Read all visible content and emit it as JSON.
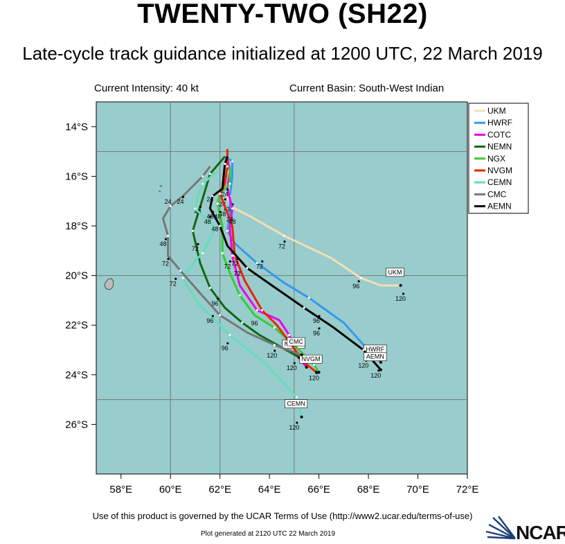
{
  "title": "TWENTY-TWO (SH22)",
  "subtitle": "Late-cycle track guidance initialized at 1200 UTC, 22 March 2019",
  "intensity": "Current Intensity: 40 kt",
  "basin": "Current Basin: South-West Indian",
  "footer": "Use of this product is governed by the UCAR Terms of Use (http://www2.ucar.edu/terms-of-use)",
  "generated": "Plot generated at 2120 UTC   22 March 2019",
  "logo_text": "NCAR",
  "colors": {
    "ocean": "#99cccc",
    "land": "#bbbbbb",
    "grid": "#777777"
  },
  "chart_data": {
    "type": "map-tracks",
    "lon_range": [
      57,
      72
    ],
    "lat_range": [
      -28,
      -13
    ],
    "x_ticks": [
      {
        "v": 58,
        "label": "58°E"
      },
      {
        "v": 60,
        "label": "60°E"
      },
      {
        "v": 62,
        "label": "62°E"
      },
      {
        "v": 64,
        "label": "64°E"
      },
      {
        "v": 66,
        "label": "66°E"
      },
      {
        "v": 68,
        "label": "68°E"
      },
      {
        "v": 70,
        "label": "70°E"
      },
      {
        "v": 72,
        "label": "72°E"
      }
    ],
    "y_ticks": [
      {
        "v": -14,
        "label": "14°S"
      },
      {
        "v": -16,
        "label": "16°S"
      },
      {
        "v": -18,
        "label": "18°S"
      },
      {
        "v": -20,
        "label": "20°S"
      },
      {
        "v": -22,
        "label": "22°S"
      },
      {
        "v": -24,
        "label": "24°S"
      },
      {
        "v": -26,
        "label": "26°S"
      }
    ],
    "gridlines_lon": [
      60,
      62,
      65
    ],
    "gridlines_lat": [
      -15,
      -20,
      -25
    ],
    "series": [
      {
        "name": "UKM",
        "color": "#f5deb3",
        "end_label": "UKM",
        "points": [
          [
            62.3,
            -15.5
          ],
          [
            62.4,
            -16.2
          ],
          [
            62.3,
            -16.8
          ],
          [
            62.4,
            -17.2
          ],
          [
            63.2,
            -17.6
          ],
          [
            64.6,
            -18.4
          ],
          [
            66.5,
            -19.3
          ],
          [
            67.7,
            -20.1
          ],
          [
            68.5,
            -20.4
          ],
          [
            69.3,
            -20.4
          ]
        ],
        "labels": [
          {
            "lon": 62.1,
            "lat": -17.1,
            "t": "24"
          },
          {
            "lon": 62.1,
            "lat": -17.5,
            "t": "48"
          },
          {
            "lon": 64.5,
            "lat": -18.8,
            "t": "72"
          },
          {
            "lon": 67.5,
            "lat": -20.4,
            "t": "96"
          },
          {
            "lon": 69.3,
            "lat": -20.9,
            "t": "120"
          }
        ]
      },
      {
        "name": "HWRF",
        "color": "#3399ee",
        "end_label": "HWRF",
        "points": [
          [
            62.2,
            -15.2
          ],
          [
            62.5,
            -15.4
          ],
          [
            62.5,
            -16.0
          ],
          [
            62.4,
            -16.8
          ],
          [
            62.4,
            -17.5
          ],
          [
            62.3,
            -18.2
          ],
          [
            62.6,
            -18.7
          ],
          [
            63.5,
            -19.5
          ],
          [
            64.6,
            -20.3
          ],
          [
            65.6,
            -20.9
          ],
          [
            67.0,
            -21.9
          ],
          [
            67.9,
            -22.9
          ],
          [
            68.5,
            -23.5
          ]
        ],
        "labels": [
          {
            "lon": 62.4,
            "lat": -17.3,
            "t": "24"
          },
          {
            "lon": 63.6,
            "lat": -19.6,
            "t": "72"
          },
          {
            "lon": 65.9,
            "lat": -21.8,
            "t": "96"
          },
          {
            "lon": 67.8,
            "lat": -23.6,
            "t": "120"
          }
        ]
      },
      {
        "name": "COTC",
        "color": "#ee00ee",
        "points": [
          [
            62.3,
            -15.3
          ],
          [
            62.4,
            -15.8
          ],
          [
            62.3,
            -16.5
          ],
          [
            62.5,
            -17.3
          ],
          [
            62.4,
            -18.1
          ],
          [
            62.5,
            -19.2
          ],
          [
            62.8,
            -20.4
          ],
          [
            63.5,
            -21.4
          ],
          [
            64.4,
            -21.8
          ],
          [
            64.8,
            -22.4
          ],
          [
            65.1,
            -23.2
          ],
          [
            65.5,
            -23.7
          ]
        ],
        "labels": [
          {
            "lon": 62.7,
            "lat": -19.9,
            "t": "72"
          }
        ]
      },
      {
        "name": "NEMN",
        "color": "#116611",
        "end_label": "NEMN",
        "points": [
          [
            62.2,
            -15.2
          ],
          [
            61.6,
            -15.9
          ],
          [
            61.3,
            -16.9
          ],
          [
            60.9,
            -18.2
          ],
          [
            61.2,
            -19.5
          ],
          [
            61.6,
            -20.5
          ],
          [
            62.2,
            -21.3
          ],
          [
            62.9,
            -21.9
          ],
          [
            63.6,
            -22.4
          ],
          [
            64.5,
            -22.9
          ],
          [
            65.2,
            -23.3
          ]
        ],
        "labels": [
          {
            "lon": 61.1,
            "lat": -17.4,
            "t": "48"
          },
          {
            "lon": 61.0,
            "lat": -18.9,
            "t": "72"
          },
          {
            "lon": 61.8,
            "lat": -21.1,
            "t": "96"
          },
          {
            "lon": 64.1,
            "lat": -23.2,
            "t": "120"
          }
        ]
      },
      {
        "name": "NGX",
        "color": "#33cc33",
        "points": [
          [
            62.4,
            -15.6
          ],
          [
            62.4,
            -16.3
          ],
          [
            62.0,
            -16.7
          ],
          [
            61.9,
            -17.1
          ],
          [
            62.1,
            -18.0
          ],
          [
            62.1,
            -19.1
          ],
          [
            62.4,
            -19.9
          ],
          [
            62.8,
            -20.8
          ],
          [
            63.4,
            -21.6
          ],
          [
            64.2,
            -22.1
          ],
          [
            65.1,
            -22.9
          ],
          [
            65.8,
            -23.6
          ],
          [
            66.0,
            -23.9
          ]
        ],
        "labels": [
          {
            "lon": 61.9,
            "lat": -17.6,
            "t": "48"
          }
        ]
      },
      {
        "name": "NVGM",
        "color": "#ee2200",
        "end_label": "NVGM",
        "points": [
          [
            62.3,
            -14.9
          ],
          [
            62.3,
            -15.6
          ],
          [
            62.2,
            -16.3
          ],
          [
            62.0,
            -16.7
          ],
          [
            62.5,
            -18.0
          ],
          [
            62.6,
            -19.2
          ],
          [
            63.0,
            -20.2
          ],
          [
            63.7,
            -21.4
          ],
          [
            64.3,
            -22.0
          ],
          [
            64.9,
            -22.8
          ],
          [
            65.4,
            -23.5
          ],
          [
            65.9,
            -23.9
          ]
        ],
        "labels": [
          {
            "lon": 62.2,
            "lat": -16.7,
            "t": "24"
          },
          {
            "lon": 62.6,
            "lat": -19.5,
            "t": "72"
          },
          {
            "lon": 65.8,
            "lat": -24.1,
            "t": "120"
          }
        ]
      },
      {
        "name": "CEMN",
        "color": "#66ddbb",
        "end_label": "CEMN",
        "points": [
          [
            61.9,
            -15.8
          ],
          [
            61.3,
            -16.3
          ],
          [
            61.1,
            -16.8
          ],
          [
            61.0,
            -17.3
          ],
          [
            61.8,
            -18.1
          ],
          [
            61.3,
            -19.1
          ],
          [
            61.0,
            -19.4
          ],
          [
            60.5,
            -20.1
          ],
          [
            61.1,
            -21.1
          ],
          [
            62.4,
            -22.4
          ],
          [
            63.9,
            -23.6
          ],
          [
            65.1,
            -24.9
          ],
          [
            65.3,
            -25.7
          ]
        ],
        "labels": [
          {
            "lon": 61.5,
            "lat": -17.8,
            "t": "48"
          },
          {
            "lon": 60.1,
            "lat": -20.3,
            "t": "72"
          },
          {
            "lon": 62.2,
            "lat": -22.9,
            "t": "96"
          },
          {
            "lon": 65.0,
            "lat": -26.1,
            "t": "120"
          }
        ]
      },
      {
        "name": "CMC",
        "color": "#777777",
        "end_label": "CMC",
        "points": [
          [
            61.6,
            -15.6
          ],
          [
            61.3,
            -16.0
          ],
          [
            60.5,
            -16.8
          ],
          [
            60.0,
            -17.2
          ],
          [
            59.7,
            -17.7
          ],
          [
            59.9,
            -18.4
          ],
          [
            59.9,
            -19.2
          ],
          [
            60.4,
            -19.8
          ],
          [
            61.1,
            -20.6
          ],
          [
            62.0,
            -21.6
          ],
          [
            63.1,
            -22.3
          ],
          [
            64.2,
            -22.8
          ],
          [
            65.3,
            -23.2
          ]
        ],
        "labels": [
          {
            "lon": 60.4,
            "lat": -17.0,
            "t": "24"
          },
          {
            "lon": 59.7,
            "lat": -18.7,
            "t": "48"
          },
          {
            "lon": 59.8,
            "lat": -19.5,
            "t": "72"
          },
          {
            "lon": 61.6,
            "lat": -21.8,
            "t": "96"
          },
          {
            "lon": 64.9,
            "lat": -23.7,
            "t": "120"
          }
        ]
      },
      {
        "name": "AEMN",
        "color": "#000000",
        "end_label": "AEMN",
        "points": [
          [
            62.3,
            -15.2
          ],
          [
            62.2,
            -15.5
          ],
          [
            62.1,
            -16.5
          ],
          [
            61.7,
            -16.8
          ],
          [
            61.6,
            -17.3
          ],
          [
            62.0,
            -18.0
          ],
          [
            62.3,
            -18.8
          ],
          [
            63.1,
            -19.7
          ],
          [
            64.1,
            -20.4
          ],
          [
            65.4,
            -21.3
          ],
          [
            66.6,
            -22.1
          ],
          [
            67.8,
            -23.0
          ],
          [
            68.5,
            -23.8
          ]
        ],
        "labels": [
          {
            "lon": 61.6,
            "lat": -17.6,
            "t": "48"
          },
          {
            "lon": 62.3,
            "lat": -19.6,
            "t": "72"
          },
          {
            "lon": 65.9,
            "lat": -22.3,
            "t": "96"
          },
          {
            "lon": 68.3,
            "lat": -24.0,
            "t": "120"
          }
        ]
      }
    ],
    "extra_labels": [
      {
        "lon": 59.9,
        "lat": -17.0,
        "t": "24"
      },
      {
        "lon": 61.6,
        "lat": -16.9,
        "t": "24"
      },
      {
        "lon": 61.8,
        "lat": -18.1,
        "t": "48"
      },
      {
        "lon": 62.5,
        "lat": -17.8,
        "t": "48"
      },
      {
        "lon": 62.4,
        "lat": -17.7,
        "t": "24"
      },
      {
        "lon": 62.7,
        "lat": -19.9,
        "t": "72"
      },
      {
        "lon": 63.4,
        "lat": -21.9,
        "t": "96"
      }
    ]
  }
}
